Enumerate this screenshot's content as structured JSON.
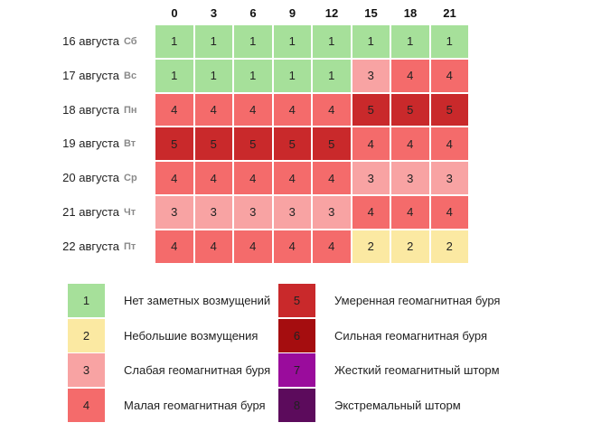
{
  "hours": [
    0,
    3,
    6,
    9,
    12,
    15,
    18,
    21
  ],
  "rows": [
    {
      "date": "16 августа",
      "weekday": "Сб",
      "values": [
        1,
        1,
        1,
        1,
        1,
        1,
        1,
        1
      ]
    },
    {
      "date": "17 августа",
      "weekday": "Вс",
      "values": [
        1,
        1,
        1,
        1,
        1,
        3,
        4,
        4
      ]
    },
    {
      "date": "18 августа",
      "weekday": "Пн",
      "values": [
        4,
        4,
        4,
        4,
        4,
        5,
        5,
        5
      ]
    },
    {
      "date": "19 августа",
      "weekday": "Вт",
      "values": [
        5,
        5,
        5,
        5,
        5,
        4,
        4,
        4
      ]
    },
    {
      "date": "20 августа",
      "weekday": "Ср",
      "values": [
        4,
        4,
        4,
        4,
        4,
        3,
        3,
        3
      ]
    },
    {
      "date": "21 августа",
      "weekday": "Чт",
      "values": [
        3,
        3,
        3,
        3,
        3,
        4,
        4,
        4
      ]
    },
    {
      "date": "22 августа",
      "weekday": "Пт",
      "values": [
        4,
        4,
        4,
        4,
        4,
        2,
        2,
        2
      ]
    }
  ],
  "legend": [
    {
      "level": 1,
      "label": "Нет заметных возмущений",
      "color": "#a6e09a"
    },
    {
      "level": 2,
      "label": "Небольшие возмущения",
      "color": "#fbe9a2"
    },
    {
      "level": 3,
      "label": "Слабая геомагнитная буря",
      "color": "#f8a3a3"
    },
    {
      "level": 4,
      "label": "Малая геомагнитная буря",
      "color": "#f46b6b"
    },
    {
      "level": 5,
      "label": "Умеренная геомагнитная буря",
      "color": "#c9292b"
    },
    {
      "level": 6,
      "label": "Сильная геомагнитная буря",
      "color": "#a50d0f"
    },
    {
      "level": 7,
      "label": "Жесткий геомагнитный шторм",
      "color": "#9a0c9c"
    },
    {
      "level": 8,
      "label": "Экстремальный шторм",
      "color": "#5c0b5c"
    }
  ]
}
